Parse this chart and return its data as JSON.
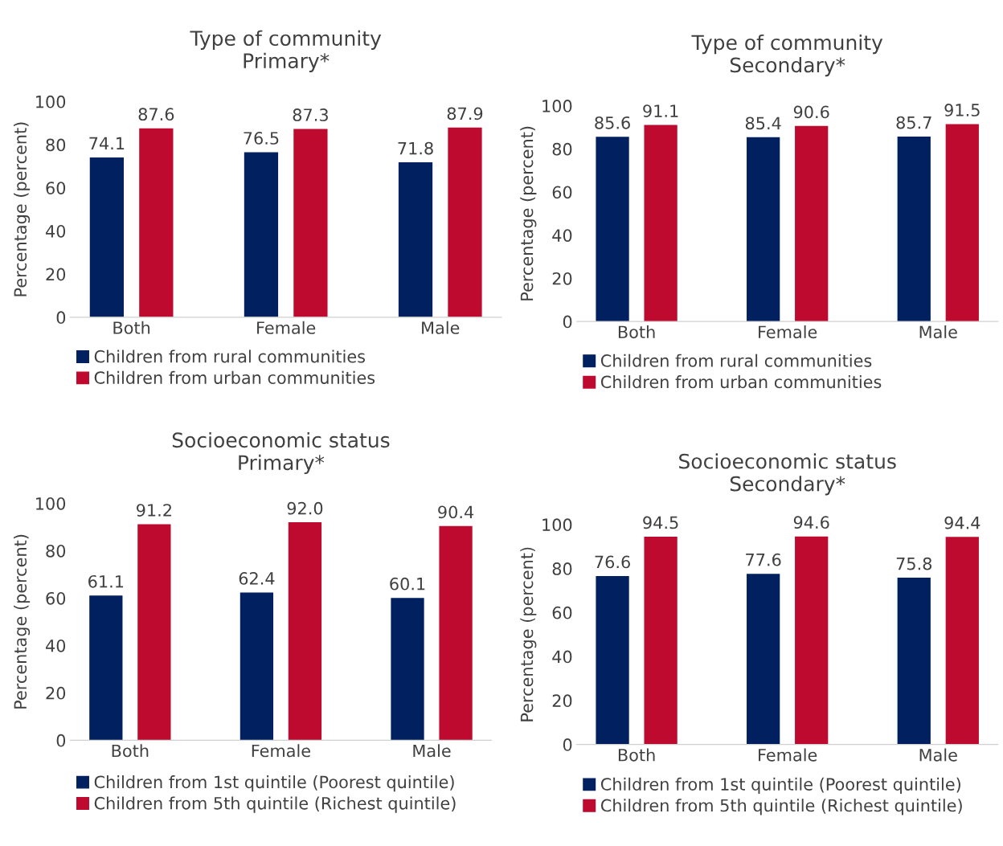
{
  "chart_data": [
    {
      "type": "bar",
      "title": "Type of community\nPrimary*",
      "ylabel": "Percentage (percent)",
      "categories": [
        "Both",
        "Female",
        "Male"
      ],
      "series": [
        {
          "name": "Children from rural communities",
          "color": "#002060",
          "values": [
            74.1,
            76.5,
            71.8
          ]
        },
        {
          "name": "Children from urban communities",
          "color": "#be0a2f",
          "values": [
            87.6,
            87.3,
            87.9
          ]
        }
      ],
      "ylim": [
        0,
        100
      ],
      "yticks": [
        0,
        20,
        40,
        60,
        80,
        100
      ],
      "grid": false,
      "legend": "bottom",
      "data_labels": true
    },
    {
      "type": "bar",
      "title": "Type of community\nSecondary*",
      "ylabel": "Percentage (percent)",
      "categories": [
        "Both",
        "Female",
        "Male"
      ],
      "series": [
        {
          "name": "Children from rural communities",
          "color": "#002060",
          "values": [
            85.6,
            85.4,
            85.7
          ]
        },
        {
          "name": "Children from urban communities",
          "color": "#be0a2f",
          "values": [
            91.1,
            90.6,
            91.5
          ]
        }
      ],
      "ylim": [
        0,
        100
      ],
      "yticks": [
        0,
        20,
        40,
        60,
        80,
        100
      ],
      "grid": false,
      "legend": "bottom",
      "data_labels": true
    },
    {
      "type": "bar",
      "title": "Socioeconomic status\nPrimary*",
      "ylabel": "Percentage (percent)",
      "categories": [
        "Both",
        "Female",
        "Male"
      ],
      "series": [
        {
          "name": "Children from 1st quintile (Poorest quintile)",
          "color": "#002060",
          "values": [
            61.1,
            62.4,
            60.1
          ],
          "value_labels": [
            "61.1",
            "62.4",
            "60.1"
          ]
        },
        {
          "name": "Children from 5th quintile (Richest quintile)",
          "color": "#be0a2f",
          "values": [
            91.2,
            92.0,
            90.4
          ],
          "value_labels": [
            "91.2",
            "92.0",
            "90.4"
          ]
        }
      ],
      "ylim": [
        0,
        100
      ],
      "yticks": [
        0,
        20,
        40,
        60,
        80,
        100
      ],
      "grid": false,
      "legend": "bottom"
    },
    {
      "type": "bar",
      "title": "Socioeconomic status\nSecondary*",
      "ylabel": "Percentage (percent)",
      "categories": [
        "Both",
        "Female",
        "Male"
      ],
      "series": [
        {
          "name": "Children from 1st quintile (Poorest quintile)",
          "color": "#002060",
          "values": [
            76.6,
            77.6,
            75.8
          ]
        },
        {
          "name": "Children from 5th quintile (Richest quintile)",
          "color": "#be0a2f",
          "values": [
            94.5,
            94.6,
            94.4
          ]
        }
      ],
      "ylim": [
        0,
        100
      ],
      "yticks": [
        0,
        20,
        40,
        60,
        80,
        100
      ],
      "grid": false,
      "legend": "bottom",
      "data_labels": true
    }
  ]
}
